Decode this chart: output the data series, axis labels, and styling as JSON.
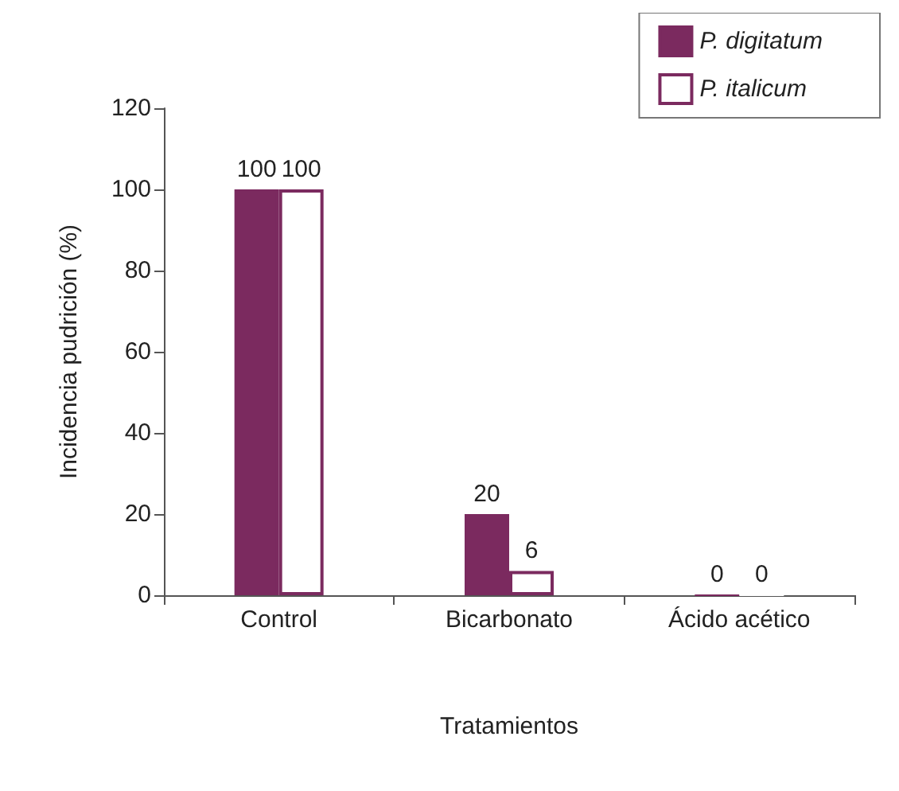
{
  "chart_data": {
    "type": "bar",
    "xlabel": "Tratamientos",
    "ylabel": "Incidencia pudrición (%)",
    "categories": [
      "Control",
      "Bicarbonato",
      "Ácido acético"
    ],
    "series": [
      {
        "name": "P. digitatum",
        "color": "#7b2a5f",
        "values": [
          100,
          20,
          0
        ]
      },
      {
        "name": "P. italicum",
        "color": "#ffffff",
        "values": [
          100,
          6,
          0
        ]
      }
    ],
    "ylim": [
      0,
      120
    ],
    "yticks": [
      0,
      20,
      40,
      60,
      80,
      100,
      120
    ],
    "grid": false,
    "legend": "top right",
    "data_labels": true
  }
}
